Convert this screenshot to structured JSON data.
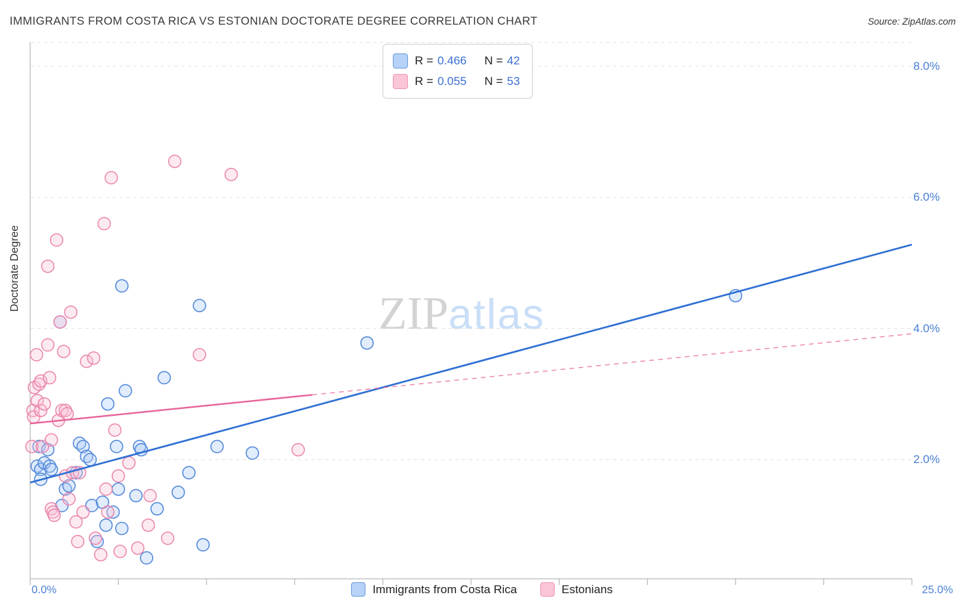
{
  "header": {
    "title": "IMMIGRANTS FROM COSTA RICA VS ESTONIAN DOCTORATE DEGREE CORRELATION CHART",
    "source": "Source: ZipAtlas.com"
  },
  "watermark": {
    "zip": "ZIP",
    "atlas": "atlas"
  },
  "legend_box": {
    "r_label": "R =",
    "n_label": "N ="
  },
  "axes": {
    "y_title": "Doctorate Degree",
    "y_ticks": [
      "8.0%",
      "6.0%",
      "4.0%",
      "2.0%"
    ],
    "x_min_label": "0.0%",
    "x_max_label": "25.0%"
  },
  "chart_data": {
    "type": "scatter",
    "title": "Immigrants from Costa Rica vs Estonian Doctorate Degree Correlation Chart",
    "xlabel": "Immigrants from Costa Rica (%)",
    "ylabel": "Doctorate Degree",
    "xlim": [
      0,
      25
    ],
    "ylim": [
      0,
      8.4
    ],
    "y_gridlines": [
      2,
      4,
      6,
      8
    ],
    "x_tick_step": 2.5,
    "legend_position": "top-center",
    "series": [
      {
        "id": "costa-rica",
        "name": "Immigrants from Costa Rica",
        "R": "0.466",
        "N": "42",
        "fill": "#a8c8f5",
        "stroke": "#4e86d8",
        "line": "#2e6fd3",
        "trend": {
          "x0": 0,
          "y0": 1.65,
          "x1": 25,
          "y1": 5.28,
          "style": "solid"
        },
        "points": [
          [
            0.2,
            1.9
          ],
          [
            0.25,
            2.2
          ],
          [
            0.3,
            1.85
          ],
          [
            0.4,
            1.95
          ],
          [
            0.5,
            2.15
          ],
          [
            0.55,
            1.9
          ],
          [
            0.6,
            1.85
          ],
          [
            0.3,
            1.7
          ],
          [
            0.9,
            1.3
          ],
          [
            1.0,
            1.55
          ],
          [
            1.1,
            1.6
          ],
          [
            1.3,
            1.8
          ],
          [
            1.4,
            2.25
          ],
          [
            1.5,
            2.2
          ],
          [
            1.6,
            2.05
          ],
          [
            1.7,
            2.0
          ],
          [
            1.75,
            1.3
          ],
          [
            1.9,
            0.75
          ],
          [
            2.05,
            1.35
          ],
          [
            2.15,
            1.0
          ],
          [
            2.2,
            2.85
          ],
          [
            2.35,
            1.2
          ],
          [
            2.5,
            1.55
          ],
          [
            2.45,
            2.2
          ],
          [
            2.6,
            0.95
          ],
          [
            2.7,
            3.05
          ],
          [
            3.0,
            1.45
          ],
          [
            3.1,
            2.2
          ],
          [
            3.15,
            2.15
          ],
          [
            3.3,
            0.5
          ],
          [
            3.6,
            1.25
          ],
          [
            3.8,
            3.25
          ],
          [
            4.2,
            1.5
          ],
          [
            4.5,
            1.8
          ],
          [
            4.9,
            0.7
          ],
          [
            5.3,
            2.2
          ],
          [
            6.3,
            2.1
          ],
          [
            2.6,
            4.65
          ],
          [
            4.8,
            4.35
          ],
          [
            9.55,
            3.78
          ],
          [
            20.0,
            4.5
          ],
          [
            0.85,
            4.1
          ]
        ]
      },
      {
        "id": "estonians",
        "name": "Estonians",
        "R": "0.055",
        "N": "53",
        "fill": "#f9c4d6",
        "stroke": "#ea86ac",
        "line": "#e8649a",
        "trend": {
          "x0": 0,
          "y0": 2.55,
          "x1": 25,
          "y1": 3.92,
          "solid_until": 8,
          "style": "solid-then-dashed"
        },
        "points": [
          [
            0.05,
            2.2
          ],
          [
            0.08,
            2.75
          ],
          [
            0.1,
            2.65
          ],
          [
            0.12,
            3.1
          ],
          [
            0.18,
            3.6
          ],
          [
            0.2,
            2.9
          ],
          [
            0.25,
            3.15
          ],
          [
            0.3,
            3.2
          ],
          [
            0.3,
            2.75
          ],
          [
            0.35,
            2.2
          ],
          [
            0.4,
            2.85
          ],
          [
            0.5,
            3.75
          ],
          [
            0.5,
            4.95
          ],
          [
            0.55,
            3.25
          ],
          [
            0.6,
            1.25
          ],
          [
            0.6,
            2.3
          ],
          [
            0.65,
            1.2
          ],
          [
            0.68,
            1.15
          ],
          [
            0.75,
            5.35
          ],
          [
            0.8,
            2.6
          ],
          [
            0.85,
            4.1
          ],
          [
            0.9,
            2.75
          ],
          [
            0.95,
            3.65
          ],
          [
            1.0,
            2.75
          ],
          [
            1.0,
            1.75
          ],
          [
            1.05,
            2.7
          ],
          [
            1.1,
            1.4
          ],
          [
            1.15,
            4.25
          ],
          [
            1.2,
            1.8
          ],
          [
            1.3,
            1.05
          ],
          [
            1.35,
            0.75
          ],
          [
            1.4,
            1.8
          ],
          [
            1.5,
            1.2
          ],
          [
            1.6,
            3.5
          ],
          [
            1.8,
            3.55
          ],
          [
            1.85,
            0.8
          ],
          [
            2.0,
            0.55
          ],
          [
            2.1,
            5.6
          ],
          [
            2.15,
            1.55
          ],
          [
            2.2,
            1.2
          ],
          [
            2.3,
            6.3
          ],
          [
            2.4,
            2.45
          ],
          [
            2.5,
            1.75
          ],
          [
            2.55,
            0.6
          ],
          [
            2.8,
            1.95
          ],
          [
            3.05,
            0.65
          ],
          [
            3.35,
            1.0
          ],
          [
            3.4,
            1.45
          ],
          [
            3.9,
            0.8
          ],
          [
            4.1,
            6.55
          ],
          [
            4.8,
            3.6
          ],
          [
            5.7,
            6.35
          ],
          [
            7.6,
            2.15
          ]
        ]
      }
    ]
  }
}
